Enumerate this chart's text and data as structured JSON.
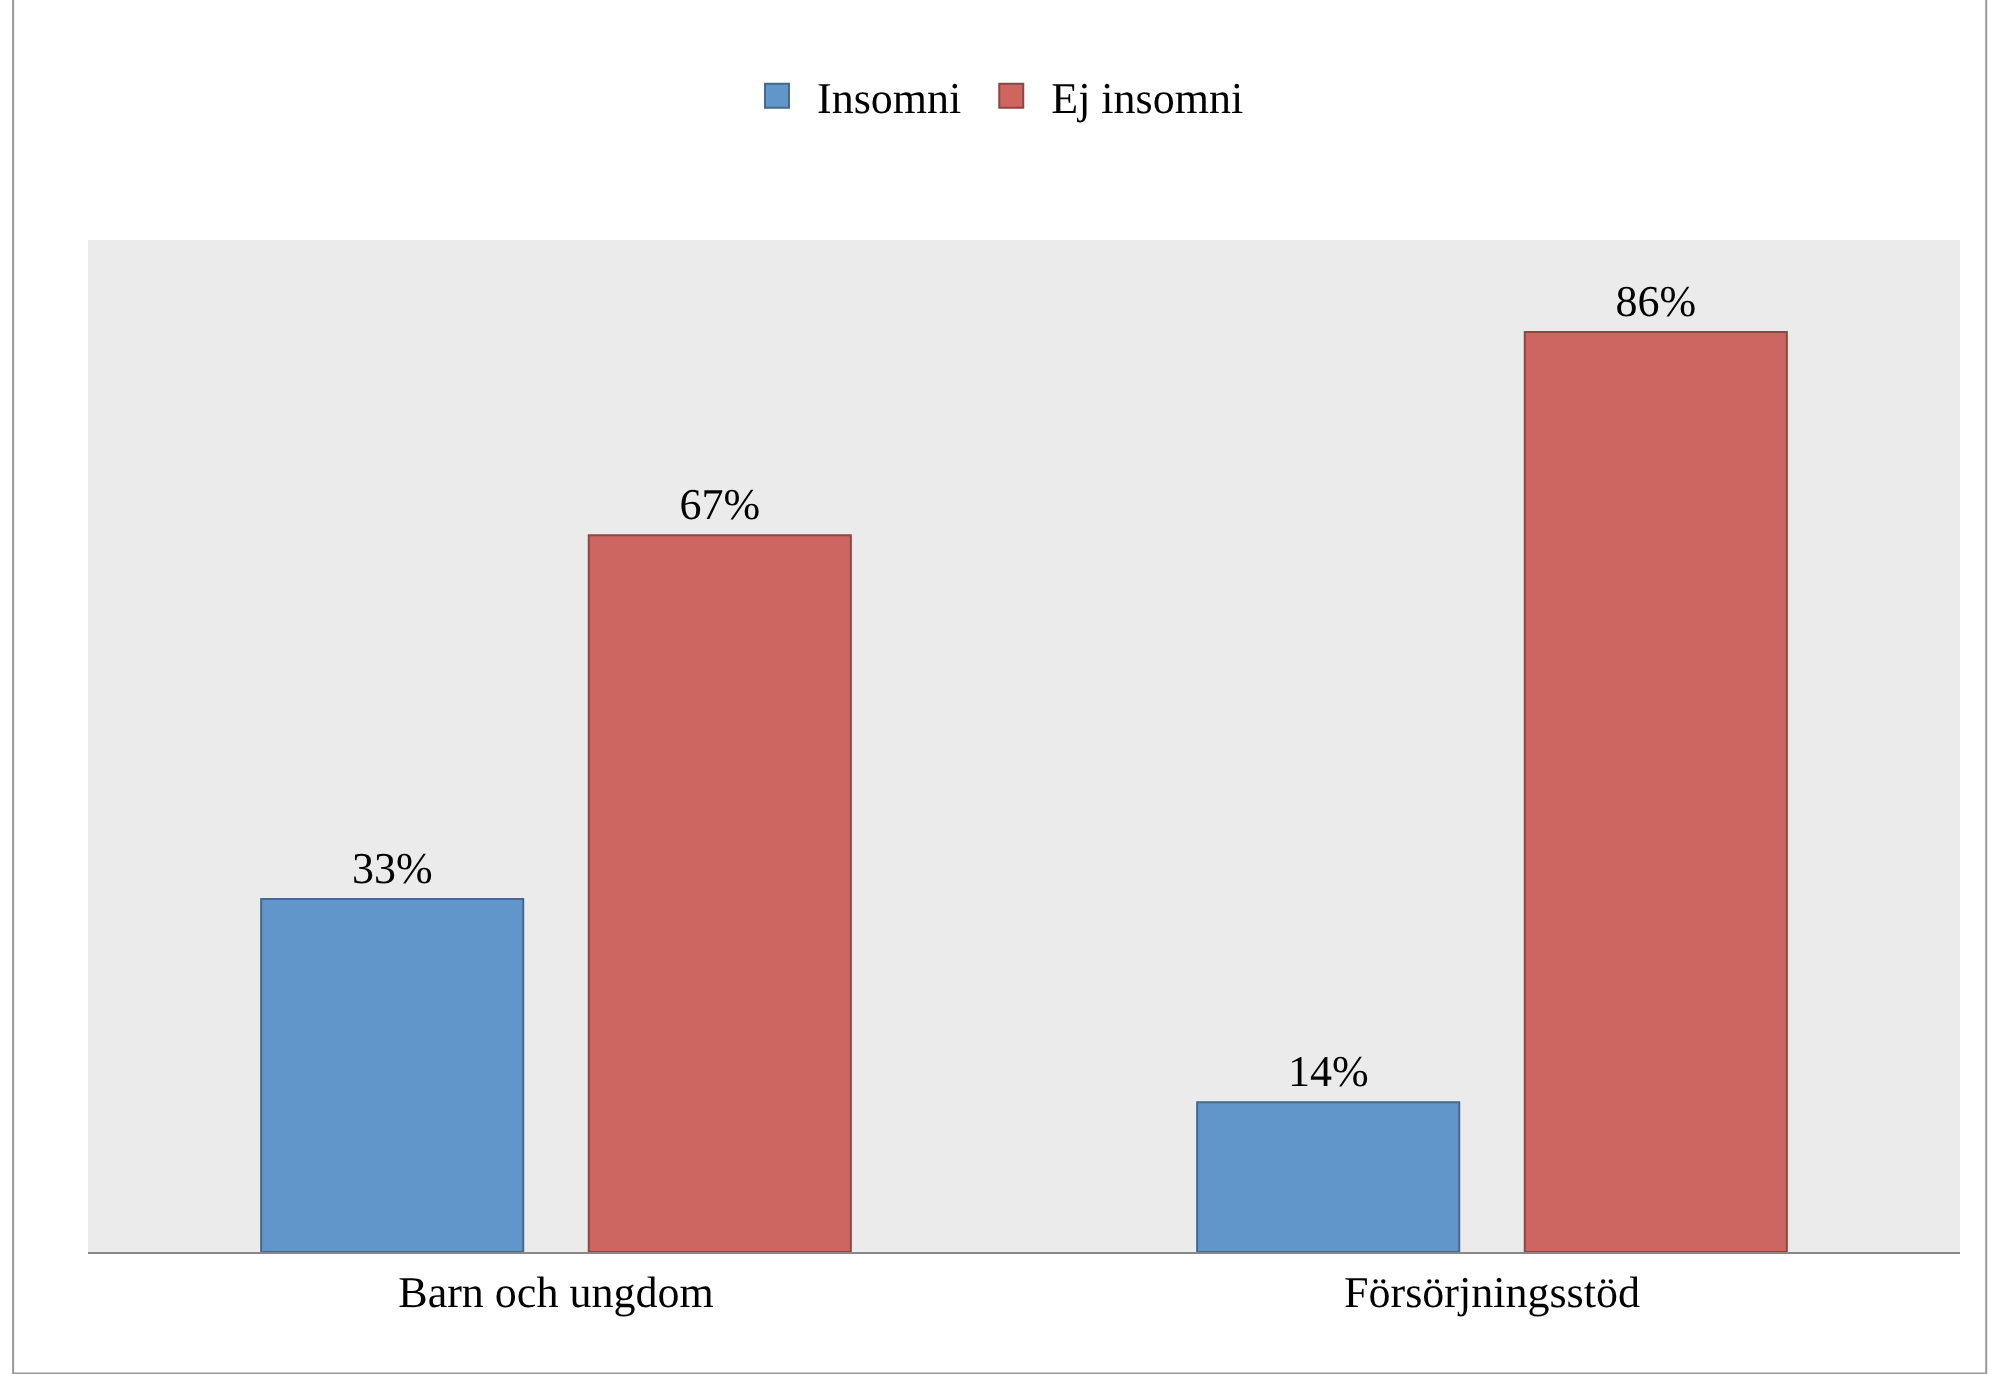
{
  "chart_data": {
    "type": "bar",
    "categories": [
      "Barn och ungdom",
      "Försörjningsstöd"
    ],
    "series": [
      {
        "name": "Insomni",
        "color": "#6096c9",
        "values": [
          33,
          14
        ],
        "value_labels": [
          "33%",
          "14%"
        ]
      },
      {
        "name": "Ej insomni",
        "color": "#cd6560",
        "values": [
          67,
          86
        ],
        "value_labels": [
          "67%",
          "86%"
        ]
      }
    ],
    "legend": "top",
    "grid": false
  }
}
